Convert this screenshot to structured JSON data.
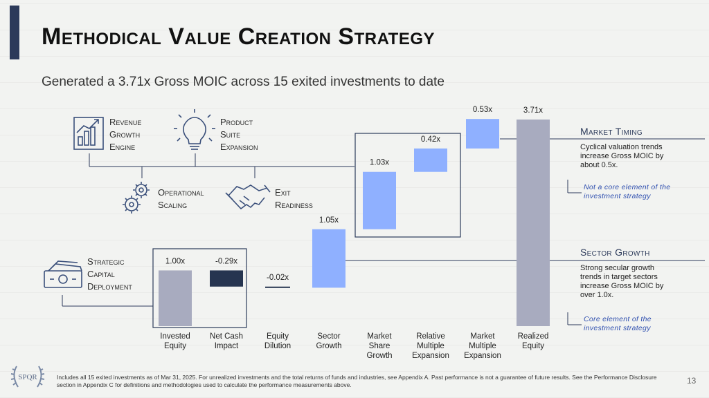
{
  "title": "Methodical Value Creation Strategy",
  "subtitle": "Generated a 3.71x Gross MOIC across 15 exited investments to date",
  "levers": {
    "revenue_growth": [
      "Revenue",
      "Growth",
      "Engine"
    ],
    "product_suite": [
      "Product",
      "Suite",
      "Expansion"
    ],
    "operational_scaling": [
      "Operational",
      "Scaling"
    ],
    "exit_readiness": [
      "Exit",
      "Readiness"
    ],
    "strategic_capital": [
      "Strategic",
      "Capital",
      "Deployment"
    ]
  },
  "side": {
    "market_timing": {
      "heading": "Market Timing",
      "text": "Cyclical valuation trends increase Gross MOIC by about 0.5x.",
      "note": "Not a core element of the investment strategy"
    },
    "sector_growth": {
      "heading": "Sector Growth",
      "text": "Strong secular growth trends in target sectors increase Gross MOIC by over 1.0x.",
      "note": "Core element of the investment strategy"
    }
  },
  "footnote": "Includes all 15 exited investments as of Mar 31, 2025. For unrealized investments and the total returns of funds and industries, see Appendix A. Past performance is not a guarantee of future results. See the Performance Disclosure section in Appendix C for definitions and methodologies used to calculate the performance measurements above.",
  "page_number": "13",
  "logo_text": "SPQR",
  "colors": {
    "accent": "#2c3a5a",
    "gray_bar": "#a8abbf",
    "blue_bar": "#8fb0ff",
    "navy_bar": "#263550",
    "line": "#2c3a5a"
  },
  "chart_data": {
    "type": "bar",
    "subtype": "waterfall",
    "categories": [
      "Invested Equity",
      "Net Cash Impact",
      "Equity Dilution",
      "Sector Growth",
      "Market Share Growth",
      "Relative Multiple Expansion",
      "Market Multiple Expansion",
      "Realized Equity"
    ],
    "category_lines": [
      [
        "Invested",
        "Equity"
      ],
      [
        "Net Cash",
        "Impact"
      ],
      [
        "Equity",
        "Dilution"
      ],
      [
        "Sector",
        "Growth"
      ],
      [
        "Market",
        "Share",
        "Growth"
      ],
      [
        "Relative",
        "Multiple",
        "Expansion"
      ],
      [
        "Market",
        "Multiple",
        "Expansion"
      ],
      [
        "Realized",
        "Equity"
      ]
    ],
    "values": [
      1.0,
      -0.29,
      -0.02,
      1.05,
      1.03,
      0.42,
      0.53,
      3.71
    ],
    "labels": [
      "1.00x",
      "-0.29x",
      "-0.02x",
      "1.05x",
      "1.03x",
      "0.42x",
      "0.53x",
      "3.71x"
    ],
    "kinds": [
      "total",
      "delta",
      "delta",
      "delta",
      "delta",
      "delta",
      "delta",
      "total"
    ],
    "colors": [
      "#a8abbf",
      "#263550",
      "#263550",
      "#8fb0ff",
      "#8fb0ff",
      "#8fb0ff",
      "#8fb0ff",
      "#a8abbf"
    ]
  }
}
